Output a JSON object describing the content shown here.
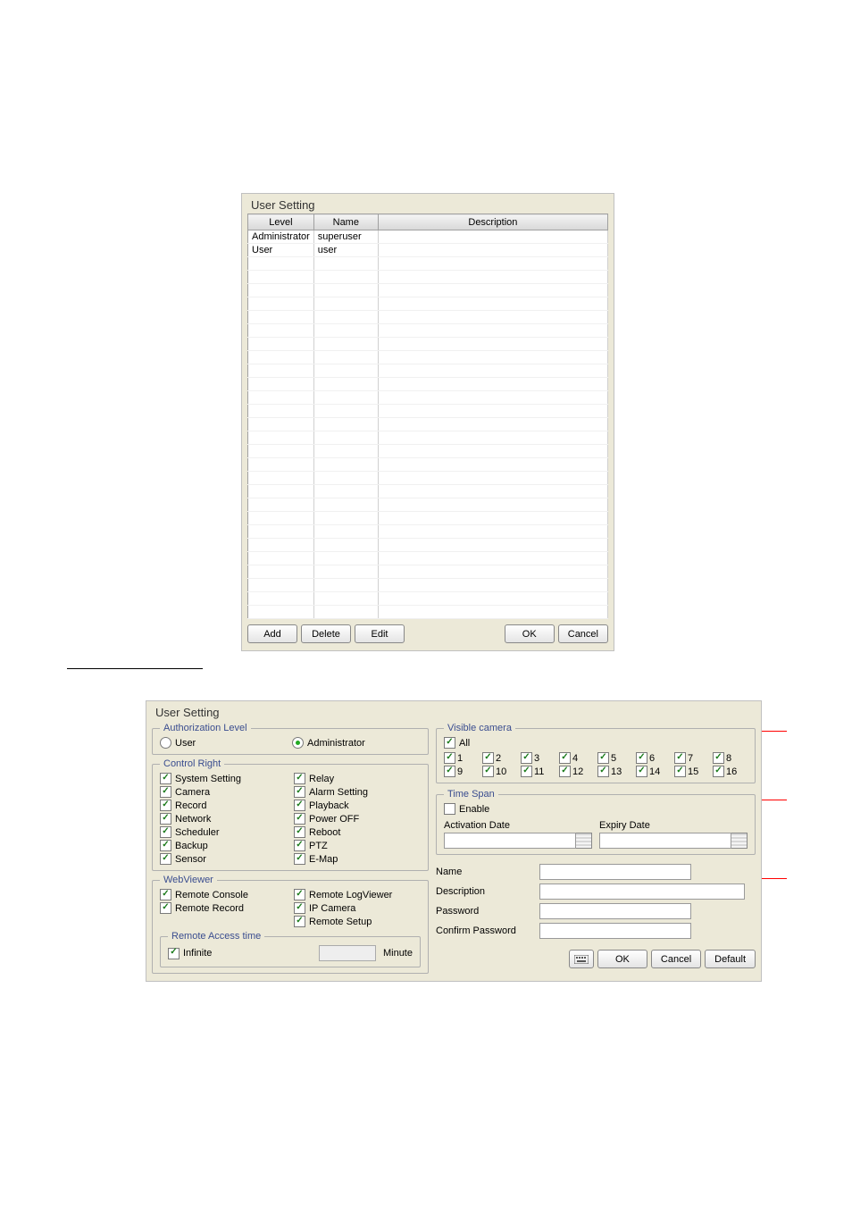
{
  "colors": {
    "panel_bg": "#ece9d8",
    "border": "#c0c0c0",
    "legend_text": "#3a4d8f",
    "red_line": "#ff0000",
    "button_bg_top": "#ffffff",
    "button_bg_bot": "#e4e4e4"
  },
  "top_panel": {
    "title": "User Setting",
    "columns": {
      "level": "Level",
      "name": "Name",
      "description": "Description"
    },
    "rows": [
      {
        "level": "Administrator",
        "name": "superuser",
        "description": ""
      },
      {
        "level": "User",
        "name": "user",
        "description": ""
      }
    ],
    "empty_rows": 27,
    "buttons": {
      "add": "Add",
      "delete": "Delete",
      "edit": "Edit",
      "ok": "OK",
      "cancel": "Cancel"
    }
  },
  "bottom_panel": {
    "title": "User Setting",
    "auth_level": {
      "legend": "Authorization Level",
      "user_label": "User",
      "admin_label": "Administrator",
      "selected": "admin"
    },
    "control_right": {
      "legend": "Control Right",
      "items_left": [
        {
          "label": "System Setting",
          "checked": true
        },
        {
          "label": "Camera",
          "checked": true
        },
        {
          "label": "Record",
          "checked": true
        },
        {
          "label": "Network",
          "checked": true
        },
        {
          "label": "Scheduler",
          "checked": true
        },
        {
          "label": "Backup",
          "checked": true
        },
        {
          "label": "Sensor",
          "checked": true
        }
      ],
      "items_right": [
        {
          "label": "Relay",
          "checked": true
        },
        {
          "label": "Alarm Setting",
          "checked": true
        },
        {
          "label": "Playback",
          "checked": true
        },
        {
          "label": "Power OFF",
          "checked": true
        },
        {
          "label": "Reboot",
          "checked": true
        },
        {
          "label": "PTZ",
          "checked": true
        },
        {
          "label": "E-Map",
          "checked": true
        }
      ]
    },
    "webviewer": {
      "legend": "WebViewer",
      "items_left": [
        {
          "label": "Remote Console",
          "checked": true
        },
        {
          "label": "Remote Record",
          "checked": true
        }
      ],
      "items_right": [
        {
          "label": "Remote LogViewer",
          "checked": true
        },
        {
          "label": "IP Camera",
          "checked": true
        },
        {
          "label": "Remote Setup",
          "checked": true
        }
      ],
      "remote_access": {
        "legend": "Remote Access time",
        "infinite_label": "Infinite",
        "infinite_checked": true,
        "minute_label": "Minute",
        "minute_value": ""
      }
    },
    "visible_camera": {
      "legend": "Visible camera",
      "all_label": "All",
      "all_checked": true,
      "cams": [
        "1",
        "2",
        "3",
        "4",
        "5",
        "6",
        "7",
        "8",
        "9",
        "10",
        "11",
        "12",
        "13",
        "14",
        "15",
        "16"
      ],
      "cams_checked": [
        true,
        true,
        true,
        true,
        true,
        true,
        true,
        true,
        true,
        true,
        true,
        true,
        true,
        true,
        true,
        true
      ]
    },
    "time_span": {
      "legend": "Time Span",
      "enable_label": "Enable",
      "enable_checked": false,
      "activation_label": "Activation Date",
      "expiry_label": "Expiry Date",
      "activation_value": "",
      "expiry_value": ""
    },
    "fields": {
      "name_label": "Name",
      "description_label": "Description",
      "password_label": "Password",
      "confirm_label": "Confirm Password",
      "name_value": "",
      "description_value": "",
      "password_value": "",
      "confirm_value": ""
    },
    "buttons": {
      "ok": "OK",
      "cancel": "Cancel",
      "default": "Default"
    }
  }
}
